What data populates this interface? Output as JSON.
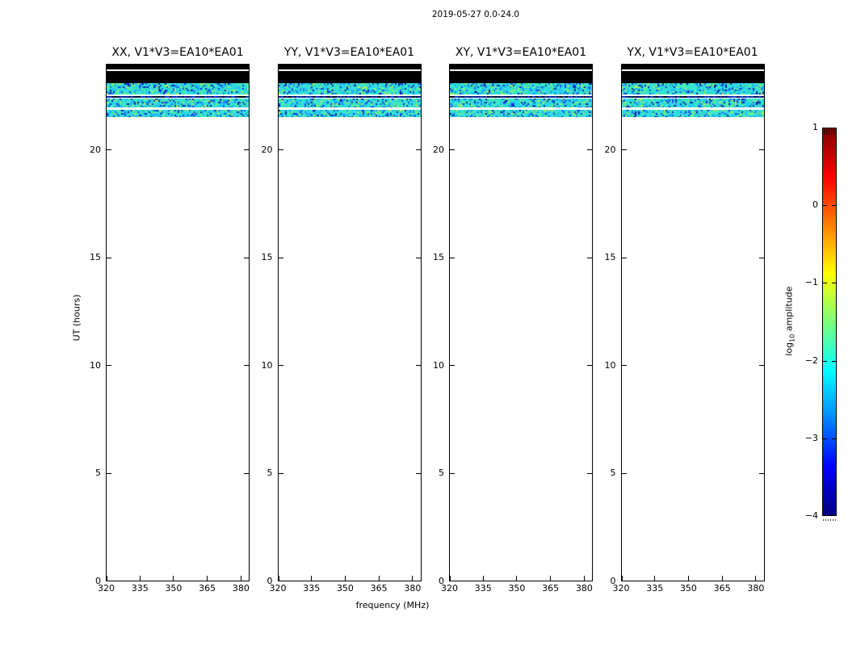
{
  "figure": {
    "title": "2019-05-27 0.0-24.0",
    "xlabel": "frequency (MHz)",
    "ylabel": "UT (hours)",
    "colorbar_label": {
      "prefix": "log",
      "sub": "10",
      "suffix": " amplitude"
    }
  },
  "chart_data": {
    "type": "heatmap",
    "title": "2019-05-27 0.0-24.0",
    "subtype": "dynamic-spectrum-waterfall",
    "baseline": "V1*V3=EA10*EA01",
    "panels": [
      {
        "title": "XX, V1*V3=EA10*EA01",
        "polarization": "XX"
      },
      {
        "title": "YY, V1*V3=EA10*EA01",
        "polarization": "YY"
      },
      {
        "title": "XY, V1*V3=EA10*EA01",
        "polarization": "XY"
      },
      {
        "title": "YX, V1*V3=EA10*EA01",
        "polarization": "YX"
      }
    ],
    "x_axis": {
      "label": "frequency (MHz)",
      "ticks": [
        320,
        335,
        350,
        365,
        380
      ],
      "range": [
        320,
        384
      ]
    },
    "y_axis": {
      "label": "UT (hours)",
      "ticks": [
        0,
        5,
        10,
        15,
        20
      ],
      "range": [
        0,
        24
      ]
    },
    "colorbar": {
      "label": "log10 amplitude",
      "tick_values": [
        1,
        0,
        -1,
        -2,
        -3,
        -4
      ],
      "side_dash_values": [
        0,
        -1,
        -2,
        -3
      ],
      "range_min": -4,
      "range_max": 1,
      "colormap": "jet",
      "gradient_stops": [
        {
          "pos": 0.0,
          "color": "#7f0000"
        },
        {
          "pos": 0.125,
          "color": "#ff0000"
        },
        {
          "pos": 0.27,
          "color": "#ff9400"
        },
        {
          "pos": 0.375,
          "color": "#ffff00"
        },
        {
          "pos": 0.5,
          "color": "#7dff7a"
        },
        {
          "pos": 0.625,
          "color": "#00ffff"
        },
        {
          "pos": 0.72,
          "color": "#00a4ff"
        },
        {
          "pos": 0.875,
          "color": "#0000ff"
        },
        {
          "pos": 1.0,
          "color": "#00007f"
        }
      ]
    },
    "time_bands": [
      {
        "t_start": 23.73,
        "t_end": 24.0,
        "type": "saturated",
        "mean_log10_amp": 1.0
      },
      {
        "t_start": 23.68,
        "t_end": 23.73,
        "type": "gap"
      },
      {
        "t_start": 23.09,
        "t_end": 23.68,
        "type": "saturated",
        "mean_log10_amp": 1.0
      },
      {
        "t_start": 22.55,
        "t_end": 23.09,
        "type": "noise",
        "palette": "cyan",
        "mean_log10_amp": -2.2
      },
      {
        "t_start": 22.49,
        "t_end": 22.55,
        "type": "gap"
      },
      {
        "t_start": 22.4,
        "t_end": 22.49,
        "type": "noise",
        "palette": "navy",
        "mean_log10_amp": -3.6
      },
      {
        "t_start": 21.97,
        "t_end": 22.4,
        "type": "noise",
        "palette": "cyan",
        "mean_log10_amp": -2.2
      },
      {
        "t_start": 21.85,
        "t_end": 21.97,
        "type": "gap"
      },
      {
        "t_start": 21.5,
        "t_end": 21.85,
        "type": "noise",
        "palette": "cyan",
        "mean_log10_amp": -2.2
      },
      {
        "t_start": 0.0,
        "t_end": 21.5,
        "type": "empty"
      }
    ],
    "palettes": {
      "cyan": [
        "#2fe0e4",
        "#2fe0e4",
        "#2fe0e4",
        "#35e5d2",
        "#35e5d2",
        "#44e9b4",
        "#44e9b4",
        "#2bd2ef",
        "#2bd2ef",
        "#53ea97",
        "#23b4f1",
        "#1e8ef0",
        "#6dee7e",
        "#1a66e8",
        "#0f3fd4",
        "#0a22a6",
        "#a8f259",
        "#31e9c3",
        "#27c6f2",
        "#18c0f0",
        "#2fe0e4",
        "#35e5d2"
      ],
      "navy": [
        "#04124e",
        "#0a1f8e",
        "#132ec6",
        "#04124e",
        "#010824",
        "#1840d4",
        "#0a1f8e",
        "#00040e",
        "#0a1f8e"
      ]
    },
    "saturated_color": "#000000",
    "empty_color": "#ffffff",
    "frame_color": "#000000",
    "background_color": "#ffffff"
  }
}
